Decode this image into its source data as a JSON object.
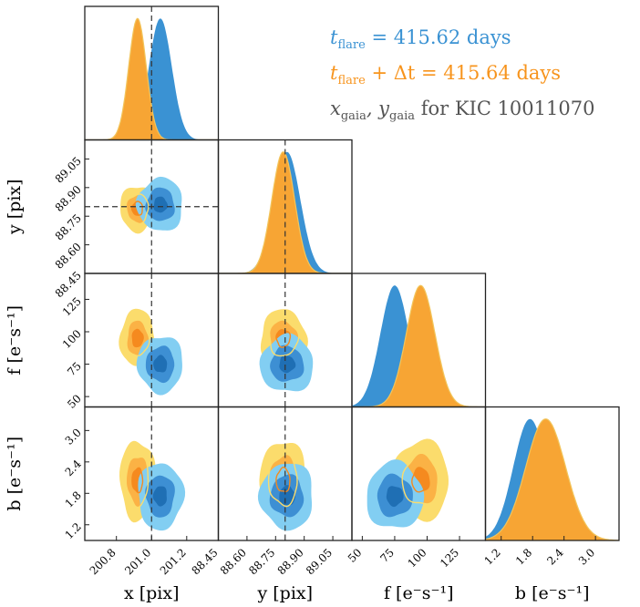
{
  "chart_data": {
    "type": "corner",
    "colors": {
      "blue_dark": "#1f6fb4",
      "blue_mid": "#3d8fd3",
      "blue_light": "#82cef2",
      "orange_dark": "#f58a1f",
      "orange_mid": "#fbb245",
      "orange_light": "#fbdc6c",
      "gaia_line": "#555555"
    },
    "parameters": [
      {
        "key": "x",
        "axis_label": "x [pix]",
        "ticks": [
          "200.8",
          "201.0",
          "201.2"
        ],
        "tick_values": [
          200.8,
          201.0,
          201.2
        ],
        "range": [
          200.62,
          201.38
        ]
      },
      {
        "key": "y",
        "axis_label": "y [pix]",
        "ticks": [
          "88.45",
          "88.60",
          "88.75",
          "88.90",
          "89.05"
        ],
        "tick_values": [
          88.45,
          88.6,
          88.75,
          88.9,
          89.05
        ],
        "range": [
          88.45,
          89.15
        ]
      },
      {
        "key": "f",
        "axis_label": "f [e⁻s⁻¹]",
        "ticks": [
          "50",
          "75",
          "100",
          "125"
        ],
        "tick_values": [
          50,
          75,
          100,
          125
        ],
        "range": [
          42,
          145
        ]
      },
      {
        "key": "b",
        "axis_label": "b [e⁻s⁻¹]",
        "ticks": [
          "1.2",
          "1.8",
          "2.4",
          "3.0"
        ],
        "tick_values": [
          1.2,
          1.8,
          2.4,
          3.0
        ],
        "range": [
          0.9,
          3.45
        ]
      }
    ],
    "gaia_reference": {
      "x": 201.0,
      "y": 88.8
    },
    "series": [
      {
        "label_main": "t",
        "label_sub": "flare",
        "label_rest": " = 415.62 days",
        "color": "#3a92d3",
        "mean": {
          "x": 201.05,
          "y": 88.81,
          "f": 75,
          "b": 1.75
        },
        "sd": {
          "x": 0.065,
          "y": 0.07,
          "f": 11,
          "b": 0.32
        }
      },
      {
        "label_main": "t",
        "label_sub": "flare",
        "label_rest": " + Δt = 415.64 days",
        "color": "#f7941d",
        "mean": {
          "x": 200.92,
          "y": 88.79,
          "f": 95,
          "b": 2.05
        },
        "sd": {
          "x": 0.05,
          "y": 0.06,
          "f": 11,
          "b": 0.38
        }
      }
    ],
    "reference_label_main": "x",
    "reference_label_sub": "gaia",
    "reference_label_mid": ", y",
    "reference_label_rest": " for KIC 10011070",
    "reference_color": "#555555"
  }
}
